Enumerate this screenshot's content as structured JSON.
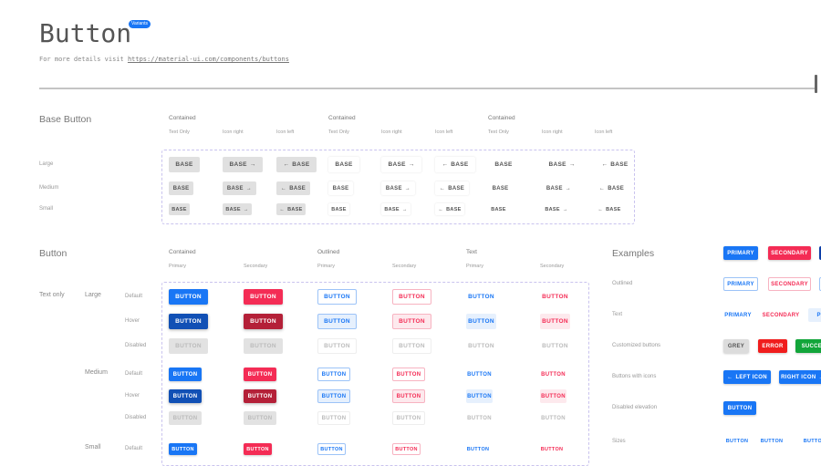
{
  "header": {
    "title": "Button",
    "badge": "Variants",
    "subtitle_prefix": "For more details visit",
    "link": "https://material-ui.com/components/buttons"
  },
  "base_section": {
    "heading": "Base Button",
    "groups": [
      "Contained",
      "Contained",
      "Contained"
    ],
    "subheaders": [
      "Text Only",
      "Icon right",
      "Icon left",
      "Text Only",
      "Icon right",
      "Icon left",
      "Text Only",
      "Icon right",
      "Icon left"
    ],
    "rows": [
      "Large",
      "Medium",
      "Small"
    ],
    "button_label": "BASE"
  },
  "button_section": {
    "heading": "Button",
    "groups": [
      "Contained",
      "Outlined",
      "Text"
    ],
    "subheaders": [
      "Primary",
      "Secondary",
      "Primary",
      "Secondary",
      "Primary",
      "Secondary"
    ],
    "type_label": "Text only",
    "sizes": [
      "Large",
      "Medium",
      "Small"
    ],
    "states": [
      "Default",
      "Hover",
      "Disabled"
    ],
    "button_label": "BUTTON"
  },
  "examples": {
    "heading": "Examples",
    "rows": [
      {
        "label": "",
        "buttons": [
          "PRIMARY",
          "SECONDARY",
          ""
        ]
      },
      {
        "label": "Outlined",
        "buttons": [
          "PRIMARY",
          "SECONDARY",
          ""
        ]
      },
      {
        "label": "Text",
        "buttons": [
          "PRIMARY",
          "SECONDARY",
          "PRI"
        ]
      },
      {
        "label": "Customized buttons",
        "buttons": [
          "GREY",
          "ERROR",
          "SUCCES"
        ]
      },
      {
        "label": "Buttons with icons",
        "buttons": [
          "LEFT ICON",
          "RIGHT ICON"
        ]
      },
      {
        "label": "Disabled elevation",
        "buttons": [
          "BUTTON"
        ]
      },
      {
        "label": "Sizes",
        "buttons": [
          "BUTTON",
          "BUTTON",
          "BUTTON"
        ]
      }
    ]
  },
  "colors": {
    "primary": "#1976f5",
    "secondary": "#f42c55",
    "error": "#f01d1d",
    "success": "#12a53a"
  }
}
